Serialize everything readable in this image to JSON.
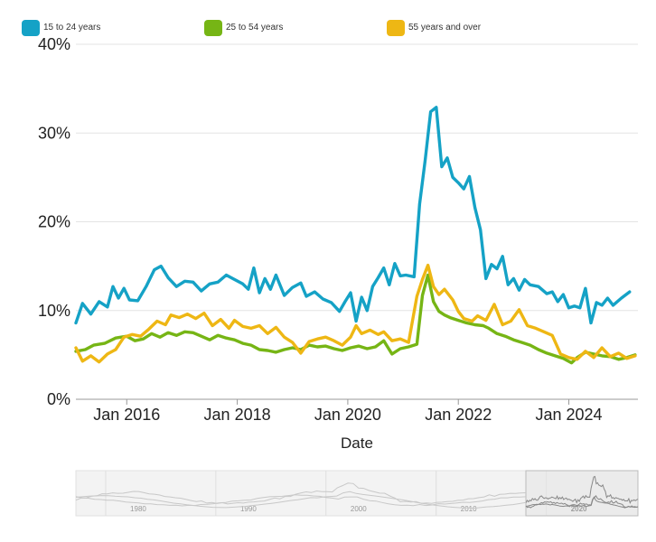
{
  "chart_data": {
    "type": "line",
    "xlabel": "Date",
    "ylabel": "",
    "ylim": [
      0,
      40
    ],
    "y_ticks": [
      "0%",
      "10%",
      "20%",
      "30%",
      "40%"
    ],
    "x_ticks": [
      {
        "label": "Jan 2016",
        "t": 2016.0
      },
      {
        "label": "Jan 2018",
        "t": 2018.0
      },
      {
        "label": "Jan 2020",
        "t": 2020.0
      },
      {
        "label": "Jan 2022",
        "t": 2022.0
      },
      {
        "label": "Jan 2024",
        "t": 2024.0
      }
    ],
    "xlim": [
      2015.08,
      2025.25
    ],
    "series": [
      {
        "name": "15 to 24 years",
        "color": "#15a2c6",
        "points": [
          [
            2015.08,
            8.6
          ],
          [
            2015.2,
            10.8
          ],
          [
            2015.35,
            9.6
          ],
          [
            2015.5,
            11.0
          ],
          [
            2015.65,
            10.4
          ],
          [
            2015.75,
            12.7
          ],
          [
            2015.85,
            11.4
          ],
          [
            2015.95,
            12.5
          ],
          [
            2016.05,
            11.2
          ],
          [
            2016.2,
            11.1
          ],
          [
            2016.35,
            12.7
          ],
          [
            2016.5,
            14.6
          ],
          [
            2016.62,
            15.0
          ],
          [
            2016.75,
            13.7
          ],
          [
            2016.9,
            12.7
          ],
          [
            2017.05,
            13.3
          ],
          [
            2017.2,
            13.2
          ],
          [
            2017.35,
            12.2
          ],
          [
            2017.5,
            13.0
          ],
          [
            2017.65,
            13.2
          ],
          [
            2017.8,
            14.0
          ],
          [
            2017.95,
            13.5
          ],
          [
            2018.1,
            13.0
          ],
          [
            2018.2,
            12.4
          ],
          [
            2018.3,
            14.8
          ],
          [
            2018.4,
            12.0
          ],
          [
            2018.5,
            13.6
          ],
          [
            2018.6,
            12.4
          ],
          [
            2018.7,
            14.0
          ],
          [
            2018.85,
            11.7
          ],
          [
            2019.0,
            12.6
          ],
          [
            2019.15,
            13.1
          ],
          [
            2019.25,
            11.6
          ],
          [
            2019.4,
            12.1
          ],
          [
            2019.55,
            11.3
          ],
          [
            2019.7,
            10.9
          ],
          [
            2019.85,
            9.9
          ],
          [
            2019.95,
            11.0
          ],
          [
            2020.05,
            12.0
          ],
          [
            2020.15,
            8.8
          ],
          [
            2020.25,
            11.5
          ],
          [
            2020.35,
            10.0
          ],
          [
            2020.45,
            12.7
          ],
          [
            2020.55,
            13.7
          ],
          [
            2020.65,
            14.8
          ],
          [
            2020.75,
            12.9
          ],
          [
            2020.85,
            15.3
          ],
          [
            2020.95,
            13.9
          ],
          [
            2021.05,
            14.0
          ],
          [
            2021.2,
            13.8
          ],
          [
            2021.3,
            22.0
          ],
          [
            2021.4,
            26.9
          ],
          [
            2021.5,
            32.4
          ],
          [
            2021.6,
            32.9
          ],
          [
            2021.7,
            26.2
          ],
          [
            2021.8,
            27.2
          ],
          [
            2021.9,
            25.0
          ],
          [
            2022.0,
            24.4
          ],
          [
            2022.1,
            23.7
          ],
          [
            2022.2,
            25.1
          ],
          [
            2022.3,
            21.6
          ],
          [
            2022.4,
            19.1
          ],
          [
            2022.5,
            13.6
          ],
          [
            2022.6,
            15.2
          ],
          [
            2022.7,
            14.7
          ],
          [
            2022.8,
            16.1
          ],
          [
            2022.9,
            12.9
          ],
          [
            2023.0,
            13.6
          ],
          [
            2023.1,
            12.3
          ],
          [
            2023.2,
            13.5
          ],
          [
            2023.3,
            12.9
          ],
          [
            2023.45,
            12.7
          ],
          [
            2023.6,
            11.9
          ],
          [
            2023.7,
            12.1
          ],
          [
            2023.8,
            11.0
          ],
          [
            2023.9,
            11.8
          ],
          [
            2024.0,
            10.3
          ],
          [
            2024.1,
            10.5
          ],
          [
            2024.2,
            10.3
          ],
          [
            2024.3,
            12.5
          ],
          [
            2024.4,
            8.6
          ],
          [
            2024.5,
            10.9
          ],
          [
            2024.6,
            10.6
          ],
          [
            2024.7,
            11.4
          ],
          [
            2024.8,
            10.6
          ],
          [
            2024.95,
            11.4
          ],
          [
            2025.1,
            12.1
          ]
        ]
      },
      {
        "name": "25 to 54 years",
        "color": "#76b515",
        "points": [
          [
            2015.08,
            5.4
          ],
          [
            2015.25,
            5.6
          ],
          [
            2015.4,
            6.1
          ],
          [
            2015.6,
            6.3
          ],
          [
            2015.8,
            6.9
          ],
          [
            2016.0,
            7.1
          ],
          [
            2016.15,
            6.6
          ],
          [
            2016.3,
            6.8
          ],
          [
            2016.45,
            7.4
          ],
          [
            2016.6,
            7.0
          ],
          [
            2016.75,
            7.5
          ],
          [
            2016.9,
            7.2
          ],
          [
            2017.05,
            7.6
          ],
          [
            2017.2,
            7.5
          ],
          [
            2017.35,
            7.1
          ],
          [
            2017.5,
            6.7
          ],
          [
            2017.65,
            7.2
          ],
          [
            2017.8,
            6.9
          ],
          [
            2017.95,
            6.7
          ],
          [
            2018.1,
            6.3
          ],
          [
            2018.25,
            6.1
          ],
          [
            2018.4,
            5.6
          ],
          [
            2018.55,
            5.5
          ],
          [
            2018.7,
            5.3
          ],
          [
            2018.85,
            5.6
          ],
          [
            2019.0,
            5.8
          ],
          [
            2019.15,
            5.6
          ],
          [
            2019.3,
            6.1
          ],
          [
            2019.45,
            5.9
          ],
          [
            2019.6,
            6.0
          ],
          [
            2019.75,
            5.7
          ],
          [
            2019.9,
            5.5
          ],
          [
            2020.05,
            5.8
          ],
          [
            2020.2,
            6.0
          ],
          [
            2020.35,
            5.7
          ],
          [
            2020.5,
            5.9
          ],
          [
            2020.65,
            6.6
          ],
          [
            2020.8,
            5.1
          ],
          [
            2020.95,
            5.7
          ],
          [
            2021.1,
            5.9
          ],
          [
            2021.25,
            6.2
          ],
          [
            2021.35,
            11.7
          ],
          [
            2021.45,
            14.0
          ],
          [
            2021.55,
            11.0
          ],
          [
            2021.65,
            9.9
          ],
          [
            2021.75,
            9.5
          ],
          [
            2021.85,
            9.2
          ],
          [
            2022.0,
            8.9
          ],
          [
            2022.15,
            8.6
          ],
          [
            2022.3,
            8.4
          ],
          [
            2022.45,
            8.3
          ],
          [
            2022.55,
            8.0
          ],
          [
            2022.7,
            7.4
          ],
          [
            2022.85,
            7.1
          ],
          [
            2023.0,
            6.7
          ],
          [
            2023.15,
            6.4
          ],
          [
            2023.3,
            6.1
          ],
          [
            2023.45,
            5.6
          ],
          [
            2023.6,
            5.2
          ],
          [
            2023.75,
            4.9
          ],
          [
            2023.9,
            4.6
          ],
          [
            2024.05,
            4.1
          ],
          [
            2024.15,
            4.7
          ],
          [
            2024.3,
            5.3
          ],
          [
            2024.45,
            5.1
          ],
          [
            2024.6,
            4.9
          ],
          [
            2024.75,
            4.8
          ],
          [
            2024.9,
            4.5
          ],
          [
            2025.05,
            4.7
          ],
          [
            2025.2,
            5.0
          ]
        ]
      },
      {
        "name": "55 years and over",
        "color": "#eeb714",
        "points": [
          [
            2015.08,
            5.8
          ],
          [
            2015.2,
            4.3
          ],
          [
            2015.35,
            4.9
          ],
          [
            2015.5,
            4.2
          ],
          [
            2015.65,
            5.1
          ],
          [
            2015.8,
            5.6
          ],
          [
            2015.95,
            7.0
          ],
          [
            2016.1,
            7.3
          ],
          [
            2016.25,
            7.1
          ],
          [
            2016.4,
            7.9
          ],
          [
            2016.55,
            8.8
          ],
          [
            2016.7,
            8.4
          ],
          [
            2016.8,
            9.5
          ],
          [
            2016.95,
            9.2
          ],
          [
            2017.1,
            9.6
          ],
          [
            2017.25,
            9.1
          ],
          [
            2017.4,
            9.7
          ],
          [
            2017.55,
            8.3
          ],
          [
            2017.7,
            9.0
          ],
          [
            2017.85,
            8.0
          ],
          [
            2017.95,
            8.9
          ],
          [
            2018.1,
            8.2
          ],
          [
            2018.25,
            8.0
          ],
          [
            2018.4,
            8.3
          ],
          [
            2018.55,
            7.4
          ],
          [
            2018.7,
            8.1
          ],
          [
            2018.85,
            7.0
          ],
          [
            2019.0,
            6.4
          ],
          [
            2019.15,
            5.2
          ],
          [
            2019.3,
            6.5
          ],
          [
            2019.45,
            6.8
          ],
          [
            2019.6,
            7.0
          ],
          [
            2019.75,
            6.6
          ],
          [
            2019.9,
            6.1
          ],
          [
            2020.05,
            7.0
          ],
          [
            2020.15,
            8.3
          ],
          [
            2020.25,
            7.4
          ],
          [
            2020.4,
            7.8
          ],
          [
            2020.55,
            7.3
          ],
          [
            2020.65,
            7.6
          ],
          [
            2020.8,
            6.6
          ],
          [
            2020.95,
            6.8
          ],
          [
            2021.1,
            6.4
          ],
          [
            2021.25,
            11.6
          ],
          [
            2021.35,
            13.5
          ],
          [
            2021.45,
            15.1
          ],
          [
            2021.55,
            12.7
          ],
          [
            2021.65,
            11.8
          ],
          [
            2021.75,
            12.4
          ],
          [
            2021.9,
            11.2
          ],
          [
            2022.0,
            9.9
          ],
          [
            2022.1,
            9.1
          ],
          [
            2022.25,
            8.8
          ],
          [
            2022.35,
            9.4
          ],
          [
            2022.5,
            8.9
          ],
          [
            2022.65,
            10.7
          ],
          [
            2022.8,
            8.4
          ],
          [
            2022.95,
            8.8
          ],
          [
            2023.1,
            10.1
          ],
          [
            2023.25,
            8.3
          ],
          [
            2023.4,
            8.0
          ],
          [
            2023.55,
            7.6
          ],
          [
            2023.7,
            7.2
          ],
          [
            2023.85,
            5.1
          ],
          [
            2024.0,
            4.7
          ],
          [
            2024.15,
            4.5
          ],
          [
            2024.3,
            5.4
          ],
          [
            2024.45,
            4.7
          ],
          [
            2024.6,
            5.8
          ],
          [
            2024.75,
            4.8
          ],
          [
            2024.9,
            5.2
          ],
          [
            2025.05,
            4.6
          ],
          [
            2025.2,
            4.9
          ]
        ]
      }
    ],
    "navigator": {
      "tick_labels": [
        "1980",
        "1990",
        "2000",
        "2010",
        "2020"
      ],
      "selected_label": "2020"
    }
  }
}
